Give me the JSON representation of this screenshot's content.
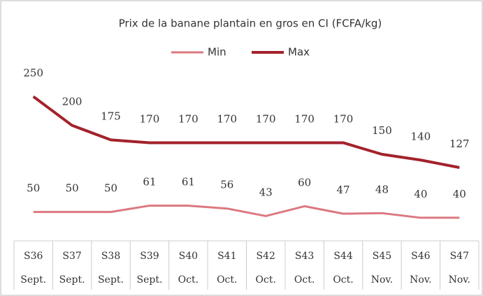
{
  "chart_data": {
    "type": "line",
    "title": "Prix de la banane plantain en gros en CI (FCFA/kg)",
    "categories": [
      [
        "S36",
        "Sept."
      ],
      [
        "S37",
        "Sept."
      ],
      [
        "S38",
        "Sept."
      ],
      [
        "S39",
        "Sept."
      ],
      [
        "S40",
        "Oct."
      ],
      [
        "S41",
        "Oct."
      ],
      [
        "S42",
        "Oct."
      ],
      [
        "S43",
        "Oct."
      ],
      [
        "S44",
        "Oct."
      ],
      [
        "S45",
        "Nov."
      ],
      [
        "S46",
        "Nov."
      ],
      [
        "S47",
        "Nov."
      ]
    ],
    "series": [
      {
        "name": "Min",
        "color": "#dc7880",
        "values": [
          50,
          50,
          50,
          61,
          61,
          56,
          43,
          60,
          47,
          48,
          40,
          40
        ]
      },
      {
        "name": "Max",
        "color": "#a3222b",
        "values": [
          250,
          200,
          175,
          170,
          170,
          170,
          170,
          170,
          170,
          150,
          140,
          127
        ]
      }
    ],
    "ylim": [
      0,
      300
    ],
    "legend": "top"
  }
}
